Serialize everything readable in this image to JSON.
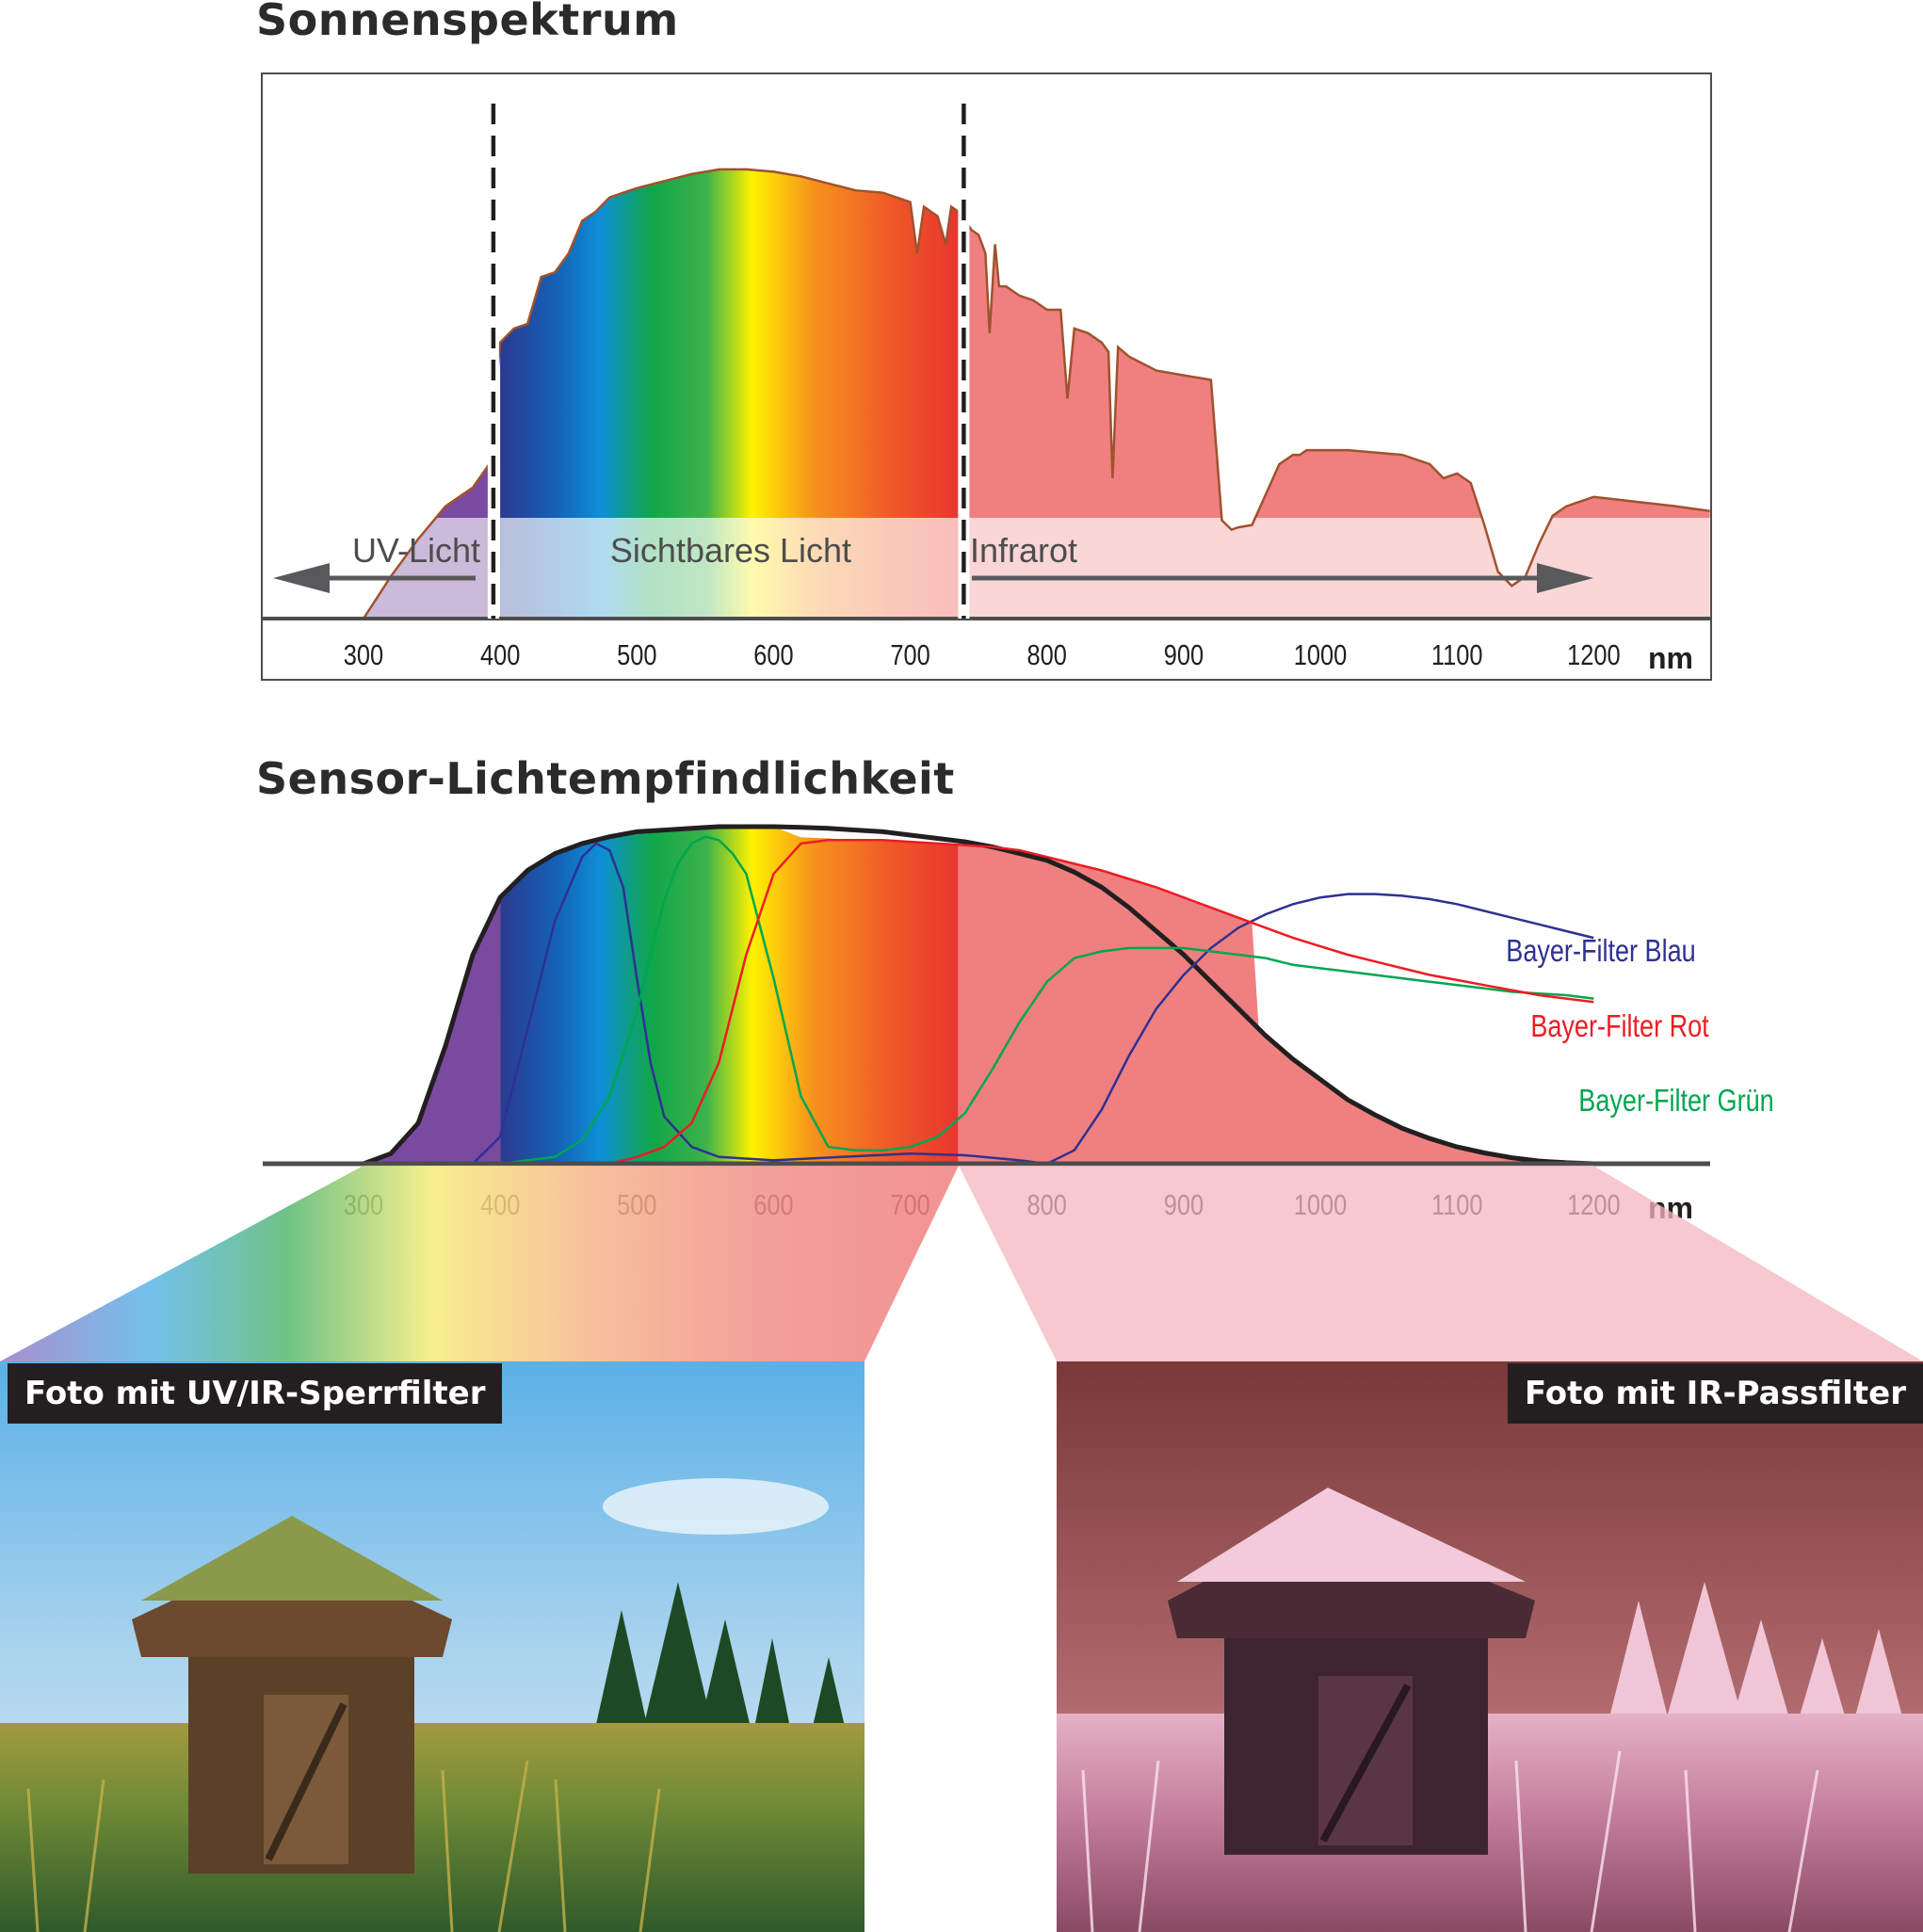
{
  "chart_data": [
    {
      "type": "area",
      "title": "Sonnenspektrum",
      "xlabel": "nm",
      "xlim": [
        230,
        1285
      ],
      "xticks": [
        300,
        400,
        500,
        600,
        700,
        800,
        900,
        1000,
        1100,
        1200
      ],
      "ylim": [
        0,
        1.0
      ],
      "grid": false,
      "dividers": [
        395,
        735
      ],
      "regions": [
        {
          "label": "UV-Licht",
          "from": 230,
          "to": 395,
          "arrow": "left"
        },
        {
          "label": "Sichtbares Licht",
          "from": 400,
          "to": 735
        },
        {
          "label": "Infrarot",
          "from": 740,
          "to": 1285,
          "arrow": "right"
        }
      ],
      "series": [
        {
          "x": [
            300,
            320,
            340,
            360,
            380,
            392,
            400,
            410,
            420,
            430,
            440,
            450,
            460,
            470,
            480,
            490,
            500,
            520,
            540,
            560,
            580,
            600,
            620,
            640,
            660,
            680,
            690,
            700,
            705,
            710,
            720,
            726,
            730,
            735,
            740,
            745,
            750,
            755,
            758,
            762,
            765,
            770,
            780,
            790,
            800,
            810,
            815,
            820,
            830,
            840,
            845,
            848,
            852,
            860,
            880,
            900,
            920,
            928,
            935,
            940,
            950,
            970,
            980,
            985,
            990,
            1000,
            1020,
            1040,
            1060,
            1080,
            1090,
            1100,
            1105,
            1110,
            1120,
            1130,
            1140,
            1150,
            1160,
            1170,
            1180,
            1200,
            1230,
            1260,
            1285
          ],
          "y": [
            0.0,
            0.09,
            0.17,
            0.24,
            0.28,
            0.33,
            0.59,
            0.62,
            0.63,
            0.73,
            0.74,
            0.78,
            0.85,
            0.87,
            0.9,
            0.91,
            0.92,
            0.935,
            0.95,
            0.96,
            0.96,
            0.955,
            0.945,
            0.93,
            0.915,
            0.91,
            0.9,
            0.89,
            0.78,
            0.88,
            0.86,
            0.8,
            0.88,
            0.87,
            0.85,
            0.83,
            0.82,
            0.78,
            0.61,
            0.8,
            0.71,
            0.71,
            0.69,
            0.68,
            0.66,
            0.66,
            0.47,
            0.62,
            0.61,
            0.59,
            0.57,
            0.3,
            0.58,
            0.56,
            0.53,
            0.52,
            0.51,
            0.21,
            0.19,
            0.195,
            0.2,
            0.33,
            0.35,
            0.35,
            0.36,
            0.36,
            0.36,
            0.355,
            0.35,
            0.33,
            0.3,
            0.31,
            0.3,
            0.29,
            0.2,
            0.1,
            0.07,
            0.09,
            0.16,
            0.22,
            0.24,
            0.26,
            0.25,
            0.24,
            0.23
          ]
        }
      ]
    },
    {
      "type": "line",
      "title": "Sensor-Lichtempfindlichkeit",
      "xlabel": "nm",
      "xlim": [
        230,
        1285
      ],
      "xticks": [
        300,
        400,
        500,
        600,
        700,
        800,
        900,
        1000,
        1100,
        1200
      ],
      "ylim": [
        0,
        1.0
      ],
      "grid": false,
      "legend": "right",
      "series": [
        {
          "name": "",
          "color": "#231f20",
          "x": [
            300,
            320,
            340,
            360,
            380,
            400,
            420,
            440,
            460,
            480,
            500,
            520,
            540,
            560,
            580,
            600,
            620,
            640,
            660,
            680,
            700,
            720,
            740,
            760,
            780,
            800,
            820,
            840,
            860,
            880,
            900,
            920,
            940,
            960,
            980,
            1000,
            1020,
            1040,
            1060,
            1080,
            1100,
            1120,
            1140,
            1160,
            1180,
            1200
          ],
          "y": [
            0.0,
            0.03,
            0.12,
            0.35,
            0.62,
            0.79,
            0.87,
            0.92,
            0.95,
            0.97,
            0.985,
            0.99,
            0.995,
            1.0,
            1.0,
            1.0,
            0.998,
            0.995,
            0.99,
            0.985,
            0.975,
            0.965,
            0.955,
            0.94,
            0.92,
            0.9,
            0.865,
            0.82,
            0.76,
            0.69,
            0.62,
            0.54,
            0.46,
            0.38,
            0.31,
            0.25,
            0.19,
            0.145,
            0.105,
            0.075,
            0.05,
            0.032,
            0.018,
            0.008,
            0.003,
            0.0
          ]
        },
        {
          "name": "Bayer-Filter Blau",
          "color": "#2e3192",
          "x": [
            380,
            400,
            420,
            440,
            460,
            470,
            480,
            490,
            500,
            510,
            520,
            540,
            560,
            600,
            650,
            700,
            740,
            780,
            800,
            820,
            840,
            860,
            880,
            900,
            920,
            940,
            960,
            980,
            1000,
            1020,
            1040,
            1060,
            1080,
            1100,
            1120,
            1140,
            1160,
            1180,
            1200
          ],
          "y": [
            0.0,
            0.08,
            0.4,
            0.72,
            0.91,
            0.95,
            0.93,
            0.82,
            0.55,
            0.3,
            0.14,
            0.05,
            0.02,
            0.01,
            0.02,
            0.03,
            0.025,
            0.01,
            0.0,
            0.04,
            0.16,
            0.32,
            0.46,
            0.56,
            0.64,
            0.7,
            0.74,
            0.77,
            0.79,
            0.8,
            0.8,
            0.795,
            0.785,
            0.77,
            0.75,
            0.73,
            0.71,
            0.69,
            0.67
          ]
        },
        {
          "name": "Bayer-Filter Grün",
          "color": "#00a650",
          "x": [
            400,
            440,
            460,
            480,
            500,
            510,
            520,
            530,
            540,
            550,
            560,
            570,
            580,
            600,
            620,
            640,
            660,
            680,
            700,
            720,
            740,
            760,
            780,
            800,
            820,
            840,
            860,
            880,
            900,
            920,
            940,
            960,
            980,
            1000,
            1020,
            1040,
            1060,
            1080,
            1100,
            1120,
            1140,
            1160,
            1180,
            1200
          ],
          "y": [
            0.0,
            0.02,
            0.07,
            0.2,
            0.45,
            0.62,
            0.78,
            0.89,
            0.95,
            0.97,
            0.96,
            0.92,
            0.86,
            0.55,
            0.2,
            0.05,
            0.04,
            0.04,
            0.05,
            0.08,
            0.15,
            0.28,
            0.42,
            0.54,
            0.61,
            0.63,
            0.64,
            0.64,
            0.64,
            0.63,
            0.62,
            0.61,
            0.59,
            0.58,
            0.57,
            0.56,
            0.55,
            0.54,
            0.53,
            0.52,
            0.51,
            0.505,
            0.5,
            0.49
          ]
        },
        {
          "name": "Bayer-Filter Rot",
          "color": "#ed1c24",
          "x": [
            480,
            500,
            520,
            540,
            560,
            580,
            600,
            620,
            640,
            660,
            680,
            700,
            720,
            740,
            760,
            780,
            800,
            820,
            840,
            860,
            880,
            900,
            920,
            940,
            960,
            980,
            1000,
            1020,
            1040,
            1060,
            1080,
            1100,
            1120,
            1140,
            1160,
            1180,
            1200
          ],
          "y": [
            0.0,
            0.02,
            0.05,
            0.12,
            0.3,
            0.62,
            0.86,
            0.95,
            0.96,
            0.96,
            0.96,
            0.955,
            0.95,
            0.945,
            0.94,
            0.93,
            0.91,
            0.89,
            0.87,
            0.845,
            0.82,
            0.79,
            0.76,
            0.73,
            0.7,
            0.67,
            0.645,
            0.62,
            0.6,
            0.58,
            0.56,
            0.545,
            0.53,
            0.515,
            0.5,
            0.49,
            0.48
          ]
        }
      ]
    }
  ],
  "photos": [
    {
      "label": "Foto mit UV/IR-Sperrfilter",
      "alt": "Holzhütte mit Grasdach auf einer Wiese"
    },
    {
      "label": "Foto mit IR-Passfilter",
      "alt": "Holzhütte mit Grasdach im Infrarotlicht"
    }
  ],
  "colors": {
    "uv": "#7a4aa0",
    "visible_gradient": [
      "#2b3a8f",
      "#0d8fd6",
      "#10a64a",
      "#fff200",
      "#f7941d",
      "#e8362e"
    ],
    "infrared": "#f08080",
    "axis": "#4d4d4d"
  }
}
